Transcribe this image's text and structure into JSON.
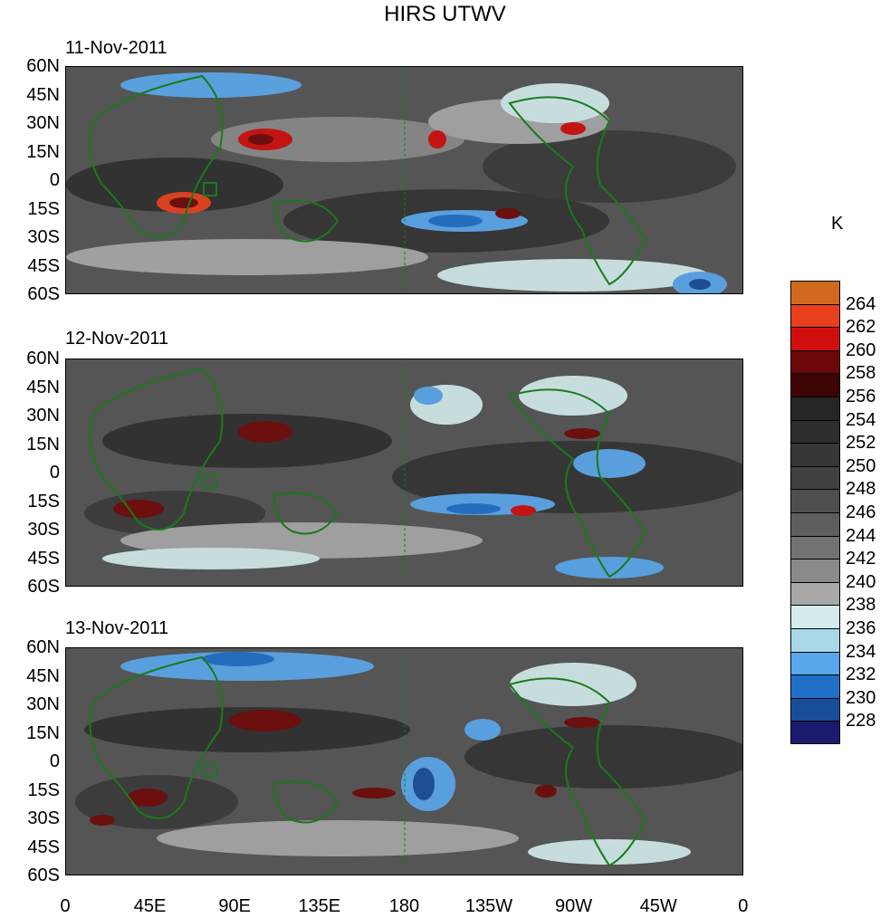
{
  "title": "HIRS UTWV",
  "units": "K",
  "lat_labels": [
    "60N",
    "45N",
    "30N",
    "15N",
    "0",
    "15S",
    "30S",
    "45S",
    "60S"
  ],
  "lon_labels": [
    "0",
    "45E",
    "90E",
    "135E",
    "180",
    "135W",
    "90W",
    "45W",
    "0"
  ],
  "panels": [
    {
      "date": "11-Nov-2011"
    },
    {
      "date": "12-Nov-2011"
    },
    {
      "date": "13-Nov-2011"
    }
  ],
  "colorbar": {
    "colors": [
      "#cf6a1f",
      "#e8401c",
      "#d00e0e",
      "#6e0808",
      "#3e0404",
      "#262626",
      "#2d2d2d",
      "#363636",
      "#414141",
      "#4e4e4e",
      "#5e5e5e",
      "#737373",
      "#8a8a8a",
      "#a8a8a8",
      "#d4ecec",
      "#a8d8e8",
      "#5aa8ec",
      "#2070c8",
      "#184e98",
      "#1a1a6e"
    ],
    "labels": [
      "264",
      "262",
      "260",
      "258",
      "256",
      "254",
      "252",
      "250",
      "248",
      "246",
      "244",
      "242",
      "240",
      "238",
      "236",
      "234",
      "232",
      "230",
      "228"
    ]
  }
}
